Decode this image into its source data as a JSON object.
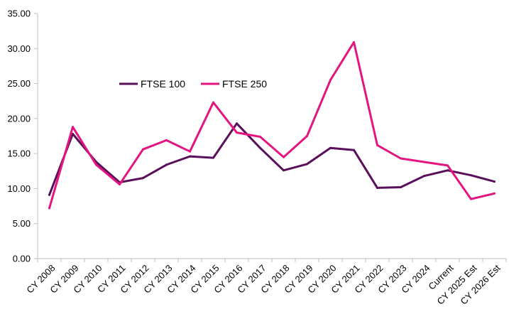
{
  "chart_data": {
    "type": "line",
    "title": "",
    "xlabel": "",
    "ylabel": "",
    "ylim": [
      0,
      35
    ],
    "yticks": [
      "0.00",
      "5.00",
      "10.00",
      "15.00",
      "20.00",
      "25.00",
      "30.00",
      "35.00"
    ],
    "categories": [
      "CY 2008",
      "CY 2009",
      "CY 2010",
      "CY 2011",
      "CY 2012",
      "CY 2013",
      "CY 2014",
      "CY 2015",
      "CY 2016",
      "CY 2017",
      "CY 2018",
      "CY 2019",
      "CY 2020",
      "CY 2021",
      "CY 2022",
      "CY 2023",
      "CY 2024",
      "Current",
      "CY 2025 Est",
      "CY 2026 Est"
    ],
    "legend_position": "upper-left",
    "grid": false,
    "series": [
      {
        "name": "FTSE 100",
        "color": "#5a0f5a",
        "values": [
          9.1,
          17.8,
          13.8,
          10.9,
          11.5,
          13.4,
          14.6,
          14.4,
          19.3,
          15.8,
          12.6,
          13.5,
          15.8,
          15.5,
          10.1,
          10.2,
          11.8,
          12.6,
          11.9,
          11.0
        ]
      },
      {
        "name": "FTSE 250",
        "color": "#e4157f",
        "values": [
          7.2,
          18.8,
          13.4,
          10.6,
          15.6,
          16.9,
          15.3,
          22.3,
          18.0,
          17.4,
          14.5,
          17.5,
          25.5,
          30.9,
          16.2,
          14.3,
          13.8,
          13.3,
          8.5,
          9.3
        ]
      }
    ]
  }
}
